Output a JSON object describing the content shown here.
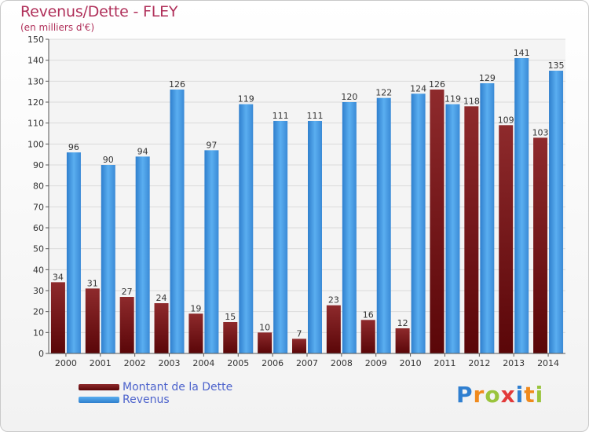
{
  "header": {
    "title": "Revenus/Dette - FLEY",
    "subtitle": "(en milliers d'€)"
  },
  "legend": {
    "items": [
      {
        "label": "Montant de la Dette",
        "color": "#7a1618"
      },
      {
        "label": "Revenus",
        "color": "#4a9fe0"
      }
    ]
  },
  "logo": {
    "text": "Proxiti"
  },
  "chart_data": {
    "type": "bar",
    "title": "Revenus/Dette - FLEY",
    "subtitle": "(en milliers d'€)",
    "categories": [
      "2000",
      "2001",
      "2002",
      "2003",
      "2004",
      "2005",
      "2006",
      "2007",
      "2008",
      "2009",
      "2010",
      "2011",
      "2012",
      "2013",
      "2014"
    ],
    "series": [
      {
        "name": "Montant de la Dette",
        "color": "#7a1618",
        "values": [
          34,
          31,
          27,
          24,
          19,
          15,
          10,
          7,
          23,
          16,
          12,
          126,
          118,
          109,
          103
        ]
      },
      {
        "name": "Revenus",
        "color": "#4a9fe0",
        "values": [
          96,
          90,
          94,
          126,
          97,
          119,
          111,
          111,
          120,
          122,
          124,
          119,
          129,
          141,
          135
        ]
      }
    ],
    "ylim": [
      0,
      150
    ],
    "yticks": [
      0,
      10,
      20,
      30,
      40,
      50,
      60,
      70,
      80,
      90,
      100,
      110,
      120,
      130,
      140,
      150
    ],
    "grid": true,
    "legend_position": "bottom-left"
  }
}
